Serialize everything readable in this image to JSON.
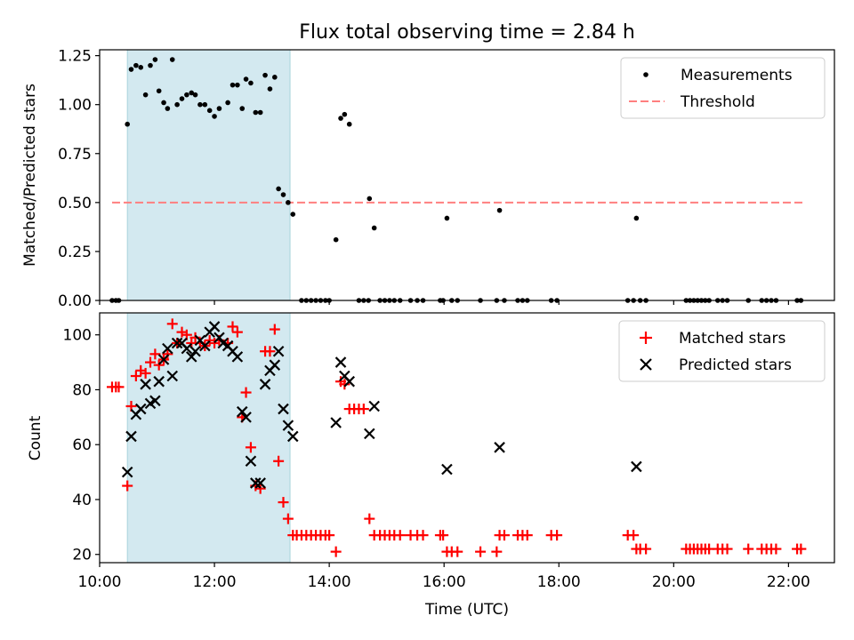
{
  "chart_data": [
    {
      "type": "scatter",
      "title": "Flux total observing time = 2.84 h",
      "xlabel": "",
      "ylabel": "Matched/Predicted stars",
      "xlim": [
        "10:00",
        "22:48"
      ],
      "ylim": [
        0,
        1.28
      ],
      "x_ticks": [
        "10:00",
        "12:00",
        "14:00",
        "16:00",
        "18:00",
        "20:00",
        "22:00"
      ],
      "y_ticks": [
        "0.00",
        "0.25",
        "0.50",
        "0.75",
        "1.00",
        "1.25"
      ],
      "shaded_interval": {
        "start": "10:29",
        "end": "13:19",
        "color": "#d3e9f0"
      },
      "legend": {
        "location": "upper right",
        "entries": [
          "Measurements",
          "Threshold"
        ]
      },
      "threshold": {
        "name": "Threshold",
        "value": 0.5,
        "x_range": [
          "10:13",
          "22:15"
        ],
        "color": "#ff7f7f",
        "style": "dashed"
      },
      "series": [
        {
          "name": "Measurements",
          "marker": "dot",
          "color": "#000000",
          "points": [
            [
              "10:13",
              0
            ],
            [
              "10:17",
              0
            ],
            [
              "10:20",
              0
            ],
            [
              "10:29",
              0.9
            ],
            [
              "10:33",
              1.18
            ],
            [
              "10:38",
              1.2
            ],
            [
              "10:43",
              1.19
            ],
            [
              "10:48",
              1.05
            ],
            [
              "10:53",
              1.2
            ],
            [
              "10:58",
              1.23
            ],
            [
              "11:02",
              1.07
            ],
            [
              "11:07",
              1.01
            ],
            [
              "11:11",
              0.98
            ],
            [
              "11:16",
              1.23
            ],
            [
              "11:21",
              1.0
            ],
            [
              "11:26",
              1.03
            ],
            [
              "11:31",
              1.05
            ],
            [
              "11:36",
              1.06
            ],
            [
              "11:40",
              1.05
            ],
            [
              "11:45",
              1.0
            ],
            [
              "11:50",
              1.0
            ],
            [
              "11:55",
              0.97
            ],
            [
              "12:00",
              0.94
            ],
            [
              "12:05",
              0.98
            ],
            [
              "12:14",
              1.01
            ],
            [
              "12:19",
              1.1
            ],
            [
              "12:24",
              1.1
            ],
            [
              "12:29",
              0.98
            ],
            [
              "12:33",
              1.13
            ],
            [
              "12:38",
              1.11
            ],
            [
              "12:43",
              0.96
            ],
            [
              "12:48",
              0.96
            ],
            [
              "12:53",
              1.15
            ],
            [
              "12:58",
              1.08
            ],
            [
              "13:03",
              1.14
            ],
            [
              "13:07",
              0.57
            ],
            [
              "13:12",
              0.54
            ],
            [
              "13:17",
              0.5
            ],
            [
              "13:22",
              0.44
            ],
            [
              "13:31",
              0
            ],
            [
              "13:36",
              0
            ],
            [
              "13:41",
              0
            ],
            [
              "13:46",
              0
            ],
            [
              "13:51",
              0
            ],
            [
              "13:56",
              0
            ],
            [
              "14:00",
              0
            ],
            [
              "14:07",
              0.31
            ],
            [
              "14:12",
              0.93
            ],
            [
              "14:16",
              0.95
            ],
            [
              "14:21",
              0.9
            ],
            [
              "14:31",
              0
            ],
            [
              "14:36",
              0
            ],
            [
              "14:41",
              0
            ],
            [
              "14:42",
              0.52
            ],
            [
              "14:47",
              0.37
            ],
            [
              "14:53",
              0
            ],
            [
              "14:58",
              0
            ],
            [
              "15:03",
              0
            ],
            [
              "15:08",
              0
            ],
            [
              "15:14",
              0
            ],
            [
              "15:25",
              0
            ],
            [
              "15:32",
              0
            ],
            [
              "15:38",
              0
            ],
            [
              "15:56",
              0
            ],
            [
              "15:59",
              0
            ],
            [
              "16:03",
              0.42
            ],
            [
              "16:08",
              0
            ],
            [
              "16:14",
              0
            ],
            [
              "16:38",
              0
            ],
            [
              "16:55",
              0
            ],
            [
              "16:58",
              0.46
            ],
            [
              "17:03",
              0
            ],
            [
              "17:17",
              0
            ],
            [
              "17:22",
              0
            ],
            [
              "17:27",
              0
            ],
            [
              "17:52",
              0
            ],
            [
              "17:58",
              0
            ],
            [
              "19:12",
              0
            ],
            [
              "19:18",
              0
            ],
            [
              "19:21",
              0.42
            ],
            [
              "19:25",
              0
            ],
            [
              "19:31",
              0
            ],
            [
              "20:13",
              0
            ],
            [
              "20:17",
              0
            ],
            [
              "20:21",
              0
            ],
            [
              "20:25",
              0
            ],
            [
              "20:29",
              0
            ],
            [
              "20:33",
              0
            ],
            [
              "20:37",
              0
            ],
            [
              "20:46",
              0
            ],
            [
              "20:51",
              0
            ],
            [
              "20:56",
              0
            ],
            [
              "21:18",
              0
            ],
            [
              "21:32",
              0
            ],
            [
              "21:37",
              0
            ],
            [
              "21:42",
              0
            ],
            [
              "21:47",
              0
            ],
            [
              "22:09",
              0
            ],
            [
              "22:13",
              0
            ]
          ]
        }
      ]
    },
    {
      "type": "scatter",
      "title": "",
      "xlabel": "Time (UTC)",
      "ylabel": "Count",
      "xlim": [
        "10:00",
        "22:48"
      ],
      "ylim": [
        17,
        108
      ],
      "x_ticks": [
        "10:00",
        "12:00",
        "14:00",
        "16:00",
        "18:00",
        "20:00",
        "22:00"
      ],
      "y_ticks": [
        "20",
        "40",
        "60",
        "80",
        "100"
      ],
      "shaded_interval": {
        "start": "10:29",
        "end": "13:19",
        "color": "#d3e9f0"
      },
      "legend": {
        "location": "upper right",
        "entries": [
          "Matched stars",
          "Predicted stars"
        ]
      },
      "series": [
        {
          "name": "Matched stars",
          "marker": "plus",
          "color": "#ff0000",
          "points": [
            [
              "10:13",
              81
            ],
            [
              "10:17",
              81
            ],
            [
              "10:20",
              81
            ],
            [
              "10:29",
              45
            ],
            [
              "10:33",
              74
            ],
            [
              "10:38",
              85
            ],
            [
              "10:43",
              87
            ],
            [
              "10:48",
              86
            ],
            [
              "10:53",
              90
            ],
            [
              "10:58",
              93
            ],
            [
              "11:02",
              89
            ],
            [
              "11:07",
              91
            ],
            [
              "11:11",
              93
            ],
            [
              "11:16",
              104
            ],
            [
              "11:21",
              97
            ],
            [
              "11:26",
              101
            ],
            [
              "11:31",
              100
            ],
            [
              "11:36",
              97
            ],
            [
              "11:40",
              99
            ],
            [
              "11:45",
              97
            ],
            [
              "11:50",
              96
            ],
            [
              "11:55",
              98
            ],
            [
              "12:00",
              97
            ],
            [
              "12:05",
              98
            ],
            [
              "12:14",
              97
            ],
            [
              "12:19",
              103
            ],
            [
              "12:24",
              101
            ],
            [
              "12:29",
              70
            ],
            [
              "12:33",
              79
            ],
            [
              "12:38",
              59
            ],
            [
              "12:43",
              45
            ],
            [
              "12:48",
              44
            ],
            [
              "12:53",
              94
            ],
            [
              "12:58",
              94
            ],
            [
              "13:03",
              102
            ],
            [
              "13:07",
              54
            ],
            [
              "13:12",
              39
            ],
            [
              "13:17",
              33
            ],
            [
              "13:22",
              27
            ],
            [
              "13:26",
              27
            ],
            [
              "13:31",
              27
            ],
            [
              "13:36",
              27
            ],
            [
              "13:41",
              27
            ],
            [
              "13:46",
              27
            ],
            [
              "13:51",
              27
            ],
            [
              "13:56",
              27
            ],
            [
              "14:00",
              27
            ],
            [
              "14:07",
              21
            ],
            [
              "14:12",
              83
            ],
            [
              "14:16",
              82
            ],
            [
              "14:21",
              73
            ],
            [
              "14:26",
              73
            ],
            [
              "14:31",
              73
            ],
            [
              "14:36",
              73
            ],
            [
              "14:42",
              33
            ],
            [
              "14:47",
              27
            ],
            [
              "14:53",
              27
            ],
            [
              "14:58",
              27
            ],
            [
              "15:03",
              27
            ],
            [
              "15:08",
              27
            ],
            [
              "15:14",
              27
            ],
            [
              "15:25",
              27
            ],
            [
              "15:32",
              27
            ],
            [
              "15:38",
              27
            ],
            [
              "15:56",
              27
            ],
            [
              "15:59",
              27
            ],
            [
              "16:03",
              21
            ],
            [
              "16:08",
              21
            ],
            [
              "16:14",
              21
            ],
            [
              "16:38",
              21
            ],
            [
              "16:55",
              21
            ],
            [
              "16:58",
              27
            ],
            [
              "17:03",
              27
            ],
            [
              "17:17",
              27
            ],
            [
              "17:22",
              27
            ],
            [
              "17:27",
              27
            ],
            [
              "17:52",
              27
            ],
            [
              "17:58",
              27
            ],
            [
              "19:12",
              27
            ],
            [
              "19:18",
              27
            ],
            [
              "19:21",
              22
            ],
            [
              "19:25",
              22
            ],
            [
              "19:31",
              22
            ],
            [
              "20:13",
              22
            ],
            [
              "20:17",
              22
            ],
            [
              "20:21",
              22
            ],
            [
              "20:25",
              22
            ],
            [
              "20:29",
              22
            ],
            [
              "20:33",
              22
            ],
            [
              "20:37",
              22
            ],
            [
              "20:46",
              22
            ],
            [
              "20:51",
              22
            ],
            [
              "20:56",
              22
            ],
            [
              "21:18",
              22
            ],
            [
              "21:32",
              22
            ],
            [
              "21:37",
              22
            ],
            [
              "21:42",
              22
            ],
            [
              "21:47",
              22
            ],
            [
              "22:09",
              22
            ],
            [
              "22:13",
              22
            ]
          ]
        },
        {
          "name": "Predicted stars",
          "marker": "x",
          "color": "#000000",
          "points": [
            [
              "10:29",
              50
            ],
            [
              "10:33",
              63
            ],
            [
              "10:38",
              71
            ],
            [
              "10:43",
              73
            ],
            [
              "10:48",
              82
            ],
            [
              "10:53",
              75
            ],
            [
              "10:58",
              76
            ],
            [
              "11:02",
              83
            ],
            [
              "11:07",
              91
            ],
            [
              "11:11",
              95
            ],
            [
              "11:16",
              85
            ],
            [
              "11:21",
              97
            ],
            [
              "11:26",
              97
            ],
            [
              "11:31",
              95
            ],
            [
              "11:36",
              92
            ],
            [
              "11:40",
              94
            ],
            [
              "11:45",
              98
            ],
            [
              "11:50",
              96
            ],
            [
              "11:55",
              101
            ],
            [
              "12:00",
              103
            ],
            [
              "12:05",
              99
            ],
            [
              "12:09",
              97
            ],
            [
              "12:14",
              96
            ],
            [
              "12:19",
              94
            ],
            [
              "12:24",
              92
            ],
            [
              "12:29",
              72
            ],
            [
              "12:33",
              70
            ],
            [
              "12:38",
              54
            ],
            [
              "12:43",
              46
            ],
            [
              "12:48",
              46
            ],
            [
              "12:53",
              82
            ],
            [
              "12:58",
              87
            ],
            [
              "13:03",
              89
            ],
            [
              "13:07",
              94
            ],
            [
              "13:12",
              73
            ],
            [
              "13:17",
              67
            ],
            [
              "13:22",
              63
            ],
            [
              "14:07",
              68
            ],
            [
              "14:12",
              90
            ],
            [
              "14:16",
              85
            ],
            [
              "14:21",
              83
            ],
            [
              "14:42",
              64
            ],
            [
              "14:47",
              74
            ],
            [
              "16:03",
              51
            ],
            [
              "16:58",
              59
            ],
            [
              "19:21",
              52
            ]
          ]
        }
      ]
    }
  ]
}
